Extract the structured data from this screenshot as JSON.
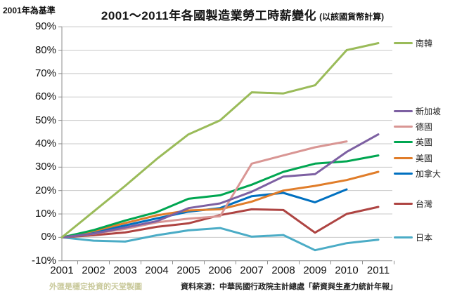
{
  "annotation_top_left": "2001年為基準",
  "title": {
    "main": "2001～2011年各國製造業勞工時薪變化",
    "sub": "(以該國貨幣計算)"
  },
  "watermark": "外匯是穩定投資的天堂製圖",
  "source": "資料來源：中華民國行政院主計總處「薪資與生產力統計年報」",
  "chart_data": {
    "type": "line",
    "title": "2001～2011年各國製造業勞工時薪變化 (以該國貨幣計算)",
    "xlabel": "",
    "ylabel": "",
    "x": [
      2001,
      2002,
      2003,
      2004,
      2005,
      2006,
      2007,
      2008,
      2009,
      2010,
      2011
    ],
    "ylim": [
      -10,
      90
    ],
    "y_tick_step": 10,
    "y_tick_labels": [
      "90%",
      "80%",
      "70%",
      "60%",
      "50%",
      "40%",
      "30%",
      "20%",
      "10%",
      "0%",
      "-10%"
    ],
    "grid": true,
    "legend_position": "right",
    "series": [
      {
        "name": "南韓",
        "color": "#9ABB59",
        "values": [
          0,
          11,
          22,
          33.5,
          44,
          50,
          62,
          61.5,
          65,
          80,
          83
        ]
      },
      {
        "name": "新加坡",
        "color": "#7D60A2",
        "values": [
          0,
          1.6,
          4.2,
          6.9,
          12.5,
          14.5,
          19.5,
          26,
          27,
          36.5,
          44
        ]
      },
      {
        "name": "德國",
        "color": "#D99694",
        "values": [
          0,
          1.5,
          3.6,
          6.4,
          8,
          9,
          31.5,
          35,
          38.5,
          41,
          null
        ]
      },
      {
        "name": "英國",
        "color": "#00A651",
        "values": [
          0,
          3.1,
          7.2,
          10.8,
          16.5,
          18,
          22.5,
          28,
          31.5,
          32.5,
          35
        ]
      },
      {
        "name": "美國",
        "color": "#E07D2A",
        "values": [
          0,
          2.7,
          6.1,
          9.4,
          11.5,
          12,
          15.3,
          20,
          22,
          24.5,
          28
        ]
      },
      {
        "name": "加拿大",
        "color": "#0070C0",
        "values": [
          0,
          2.1,
          5.1,
          8.1,
          11,
          12.5,
          17.6,
          19,
          15,
          20.5,
          null
        ]
      },
      {
        "name": "台灣",
        "color": "#AE4442",
        "values": [
          0,
          0.9,
          2.1,
          4.5,
          6,
          9.5,
          12,
          11.7,
          2,
          10,
          13
        ]
      },
      {
        "name": "日本",
        "color": "#4BACC6",
        "values": [
          0,
          -1.4,
          -1.8,
          0.9,
          3,
          4,
          0.3,
          1,
          -5.5,
          -2.5,
          -1
        ]
      }
    ]
  }
}
